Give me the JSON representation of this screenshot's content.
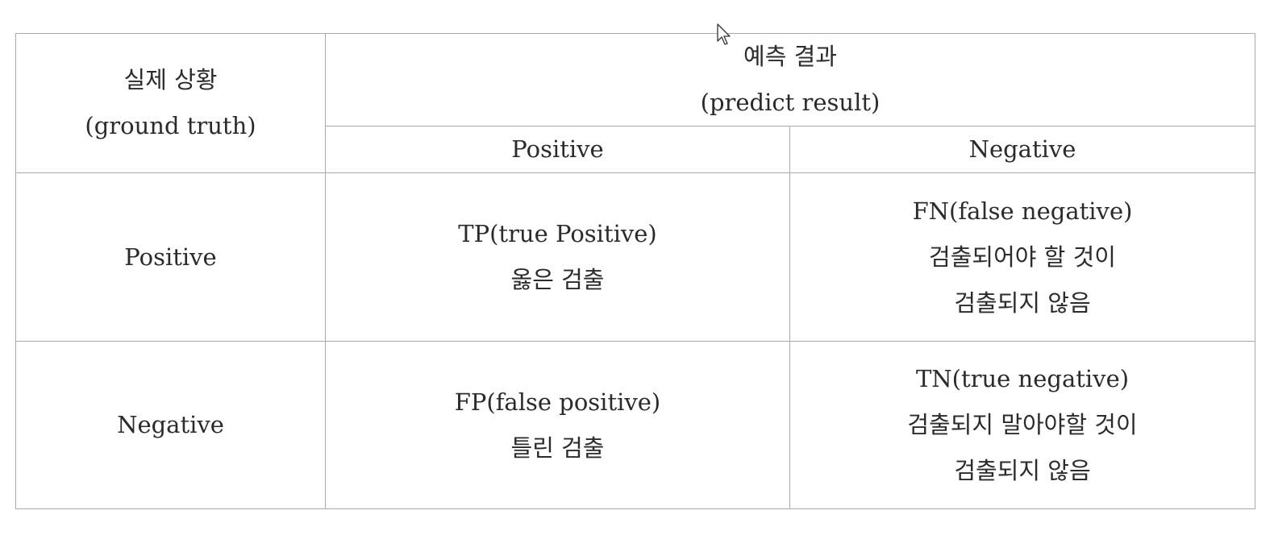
{
  "table": {
    "truth_header": [
      "실제 상황",
      "(ground truth)"
    ],
    "predict_header": [
      "예측 결과",
      "(predict result)"
    ],
    "predict_positive_label": "Positive",
    "predict_negative_label": "Negative",
    "rows": [
      {
        "truth_label": "Positive",
        "cells": [
          [
            "TP(true Positive)",
            "옳은 검출"
          ],
          [
            "FN(false negative)",
            "검출되어야 할 것이",
            "검출되지 않음"
          ]
        ]
      },
      {
        "truth_label": "Negative",
        "cells": [
          [
            "FP(false positive)",
            "틀린 검출"
          ],
          [
            "TN(true negative)",
            "검출되지 말아야할 것이",
            "검출되지 않음"
          ]
        ]
      }
    ]
  }
}
